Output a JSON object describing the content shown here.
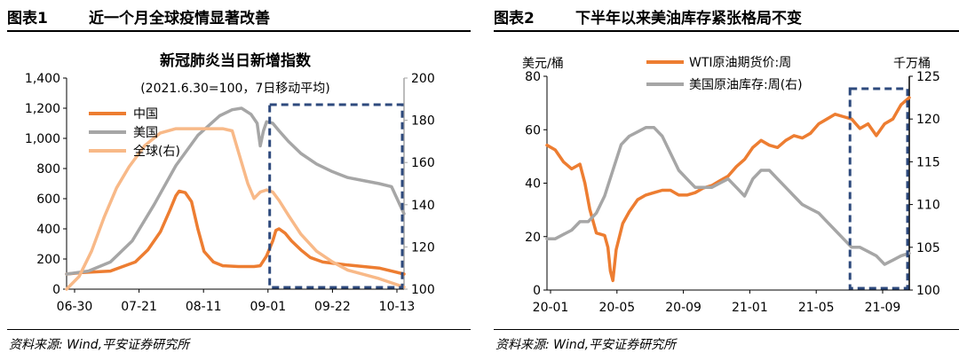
{
  "chart_data": [
    {
      "type": "line",
      "figure_label": "图表1",
      "figure_title": "近一个月全球疫情显著改善",
      "title": "新冠肺炎当日新增指数",
      "subtitle": "(2021.6.30=100，7日移动平均)",
      "x_ticks": [
        "06-30",
        "07-21",
        "08-11",
        "09-01",
        "09-22",
        "10-13"
      ],
      "x_range": [
        0,
        108
      ],
      "ylim_left": [
        0,
        1400
      ],
      "yticks_left": [
        "0",
        "200",
        "400",
        "600",
        "800",
        "1,000",
        "1,200",
        "1,400"
      ],
      "ylim_right": [
        100,
        200
      ],
      "yticks_right": [
        "100",
        "120",
        "140",
        "160",
        "180",
        "200"
      ],
      "legend_position": "upper-left",
      "highlight_box_x": [
        65,
        108
      ],
      "series": [
        {
          "name": "中国",
          "axis": "left",
          "color": "#ED7D31",
          "points": [
            [
              0,
              100
            ],
            [
              5,
              110
            ],
            [
              10,
              115
            ],
            [
              14,
              120
            ],
            [
              18,
              150
            ],
            [
              22,
              180
            ],
            [
              26,
              260
            ],
            [
              30,
              380
            ],
            [
              33,
              520
            ],
            [
              35,
              620
            ],
            [
              36,
              650
            ],
            [
              38,
              640
            ],
            [
              40,
              580
            ],
            [
              42,
              400
            ],
            [
              44,
              250
            ],
            [
              47,
              180
            ],
            [
              50,
              155
            ],
            [
              55,
              150
            ],
            [
              60,
              150
            ],
            [
              62,
              155
            ],
            [
              64,
              220
            ],
            [
              66,
              320
            ],
            [
              67,
              390
            ],
            [
              68,
              400
            ],
            [
              70,
              370
            ],
            [
              72,
              320
            ],
            [
              75,
              260
            ],
            [
              78,
              210
            ],
            [
              82,
              180
            ],
            [
              86,
              170
            ],
            [
              90,
              160
            ],
            [
              95,
              150
            ],
            [
              100,
              140
            ],
            [
              104,
              120
            ],
            [
              108,
              100
            ]
          ]
        },
        {
          "name": "美国",
          "axis": "left",
          "color": "#A6A6A6",
          "points": [
            [
              0,
              100
            ],
            [
              7,
              120
            ],
            [
              14,
              180
            ],
            [
              21,
              320
            ],
            [
              28,
              560
            ],
            [
              35,
              820
            ],
            [
              42,
              1020
            ],
            [
              49,
              1150
            ],
            [
              53,
              1190
            ],
            [
              56,
              1200
            ],
            [
              59,
              1160
            ],
            [
              61,
              1100
            ],
            [
              62,
              950
            ],
            [
              63,
              1050
            ],
            [
              64,
              1110
            ],
            [
              66,
              1100
            ],
            [
              68,
              1050
            ],
            [
              71,
              980
            ],
            [
              75,
              900
            ],
            [
              80,
              830
            ],
            [
              85,
              780
            ],
            [
              90,
              740
            ],
            [
              95,
              720
            ],
            [
              100,
              700
            ],
            [
              104,
              680
            ],
            [
              108,
              500
            ]
          ]
        },
        {
          "name": "全球(右)",
          "axis": "right",
          "color": "#F8B988",
          "points": [
            [
              0,
              100
            ],
            [
              4,
              106
            ],
            [
              8,
              118
            ],
            [
              12,
              134
            ],
            [
              16,
              148
            ],
            [
              20,
              158
            ],
            [
              25,
              168
            ],
            [
              30,
              174
            ],
            [
              35,
              176
            ],
            [
              40,
              176
            ],
            [
              45,
              176
            ],
            [
              50,
              176
            ],
            [
              53,
              175
            ],
            [
              55,
              165
            ],
            [
              58,
              150
            ],
            [
              60,
              143
            ],
            [
              62,
              146
            ],
            [
              64,
              147
            ],
            [
              66,
              146
            ],
            [
              68,
              142
            ],
            [
              71,
              135
            ],
            [
              75,
              126
            ],
            [
              80,
              118
            ],
            [
              85,
              113
            ],
            [
              90,
              109
            ],
            [
              95,
              107
            ],
            [
              100,
              105
            ],
            [
              104,
              103
            ],
            [
              108,
              101
            ]
          ]
        }
      ]
    },
    {
      "type": "line",
      "figure_label": "图表2",
      "figure_title": "下半年以来美油库存紧张格局不变",
      "ylabel_left": "美元/桶",
      "ylabel_right": "千万桶",
      "x_ticks": [
        "20-01",
        "20-05",
        "20-09",
        "21-01",
        "21-05",
        "21-09"
      ],
      "x_range": [
        0,
        22
      ],
      "ylim_left": [
        0,
        90
      ],
      "yticks_left": [
        "0",
        "20",
        "40",
        "60",
        "80"
      ],
      "ylim_right": [
        100,
        125
      ],
      "yticks_right": [
        "100",
        "105",
        "110",
        "115",
        "120",
        "125"
      ],
      "legend_position": "top",
      "highlight_box_x": [
        18.4,
        22
      ],
      "series": [
        {
          "name": "WTI原油期货价:周",
          "axis": "left",
          "color": "#ED7D31",
          "points": [
            [
              0,
              61
            ],
            [
              0.5,
              59
            ],
            [
              1,
              54
            ],
            [
              1.5,
              51
            ],
            [
              2,
              53
            ],
            [
              2.3,
              45
            ],
            [
              2.6,
              34
            ],
            [
              3,
              24
            ],
            [
              3.5,
              23
            ],
            [
              3.7,
              18
            ],
            [
              3.85,
              8
            ],
            [
              4,
              4
            ],
            [
              4.2,
              17
            ],
            [
              4.6,
              28
            ],
            [
              5,
              33
            ],
            [
              5.5,
              38
            ],
            [
              6,
              40
            ],
            [
              6.5,
              41
            ],
            [
              7,
              42
            ],
            [
              7.5,
              42
            ],
            [
              8,
              40
            ],
            [
              8.5,
              40
            ],
            [
              9,
              41
            ],
            [
              9.5,
              43
            ],
            [
              10,
              44
            ],
            [
              10.5,
              46
            ],
            [
              11,
              48
            ],
            [
              11.5,
              52
            ],
            [
              12,
              55
            ],
            [
              12.5,
              60
            ],
            [
              13,
              63
            ],
            [
              13.5,
              61
            ],
            [
              14,
              60
            ],
            [
              14.5,
              63
            ],
            [
              15,
              65
            ],
            [
              15.5,
              64
            ],
            [
              16,
              66
            ],
            [
              16.5,
              70
            ],
            [
              17,
              72
            ],
            [
              17.5,
              74
            ],
            [
              18,
              73
            ],
            [
              18.5,
              72
            ],
            [
              19,
              68
            ],
            [
              19.5,
              70
            ],
            [
              20,
              65
            ],
            [
              20.5,
              70
            ],
            [
              21,
              72
            ],
            [
              21.5,
              78
            ],
            [
              22,
              81
            ]
          ]
        },
        {
          "name": "美国原油库存:周(右)",
          "axis": "right",
          "color": "#A6A6A6",
          "points": [
            [
              0,
              106
            ],
            [
              0.5,
              106
            ],
            [
              1,
              106.5
            ],
            [
              1.5,
              107
            ],
            [
              2,
              108
            ],
            [
              2.5,
              108
            ],
            [
              3,
              109
            ],
            [
              3.5,
              111
            ],
            [
              4,
              114
            ],
            [
              4.5,
              117
            ],
            [
              5,
              118
            ],
            [
              5.5,
              118.5
            ],
            [
              6,
              119
            ],
            [
              6.5,
              119
            ],
            [
              7,
              118
            ],
            [
              7.5,
              116
            ],
            [
              8,
              114
            ],
            [
              8.5,
              113
            ],
            [
              9,
              112
            ],
            [
              9.5,
              112
            ],
            [
              10,
              112
            ],
            [
              10.5,
              112.5
            ],
            [
              11,
              113
            ],
            [
              11.5,
              112
            ],
            [
              12,
              111
            ],
            [
              12.5,
              113
            ],
            [
              13,
              114
            ],
            [
              13.5,
              114
            ],
            [
              14,
              113
            ],
            [
              14.5,
              112
            ],
            [
              15,
              111
            ],
            [
              15.5,
              110
            ],
            [
              16,
              109.5
            ],
            [
              16.5,
              109
            ],
            [
              17,
              108
            ],
            [
              17.5,
              107
            ],
            [
              18,
              106
            ],
            [
              18.5,
              105
            ],
            [
              19,
              105
            ],
            [
              19.5,
              104.5
            ],
            [
              20,
              104
            ],
            [
              20.5,
              103
            ],
            [
              21,
              103.5
            ],
            [
              21.5,
              104
            ],
            [
              22,
              104.3
            ]
          ]
        }
      ]
    }
  ],
  "footer": {
    "source": "资料来源: Wind,平安证券研究所"
  }
}
